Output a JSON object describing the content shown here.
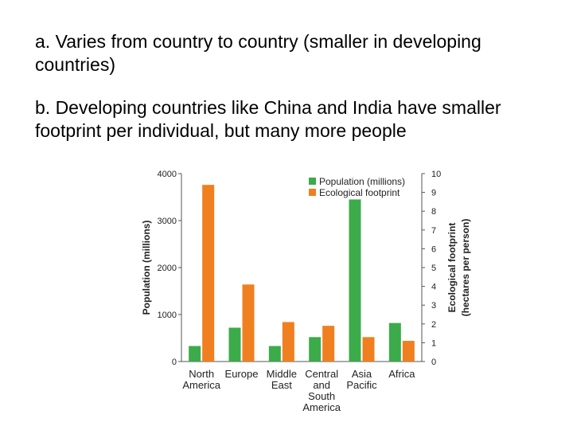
{
  "slide": {
    "paragraph_a": "a. Varies from country to country (smaller in developing countries)",
    "paragraph_b": "b. Developing countries like China and India have smaller footprint per individual, but many more people"
  },
  "chart_data": {
    "type": "bar",
    "categories": [
      [
        "North",
        "America"
      ],
      [
        "Europe"
      ],
      [
        "Middle",
        "East"
      ],
      [
        "Central",
        "and",
        "South",
        "America"
      ],
      [
        "Asia",
        "Pacific"
      ],
      [
        "Africa"
      ]
    ],
    "series": [
      {
        "name": "Population (millions)",
        "axis": "left",
        "color": "#3cab4a",
        "values": [
          330,
          720,
          330,
          520,
          3450,
          820
        ]
      },
      {
        "name": "Ecological footprint",
        "axis": "right",
        "color": "#f07f20",
        "values": [
          9.4,
          4.1,
          2.1,
          1.9,
          1.3,
          1.1
        ]
      }
    ],
    "ylabel": "Population (millions)",
    "ylim": [
      0,
      4000
    ],
    "yticks": [
      0,
      1000,
      2000,
      3000,
      4000
    ],
    "y2label": [
      "Ecological footprint",
      "(hectares per person)"
    ],
    "y2lim": [
      0,
      10
    ],
    "y2ticks": [
      0,
      1,
      2,
      3,
      4,
      5,
      6,
      7,
      8,
      9,
      10
    ],
    "legend_position": "top-right",
    "grid": false
  }
}
